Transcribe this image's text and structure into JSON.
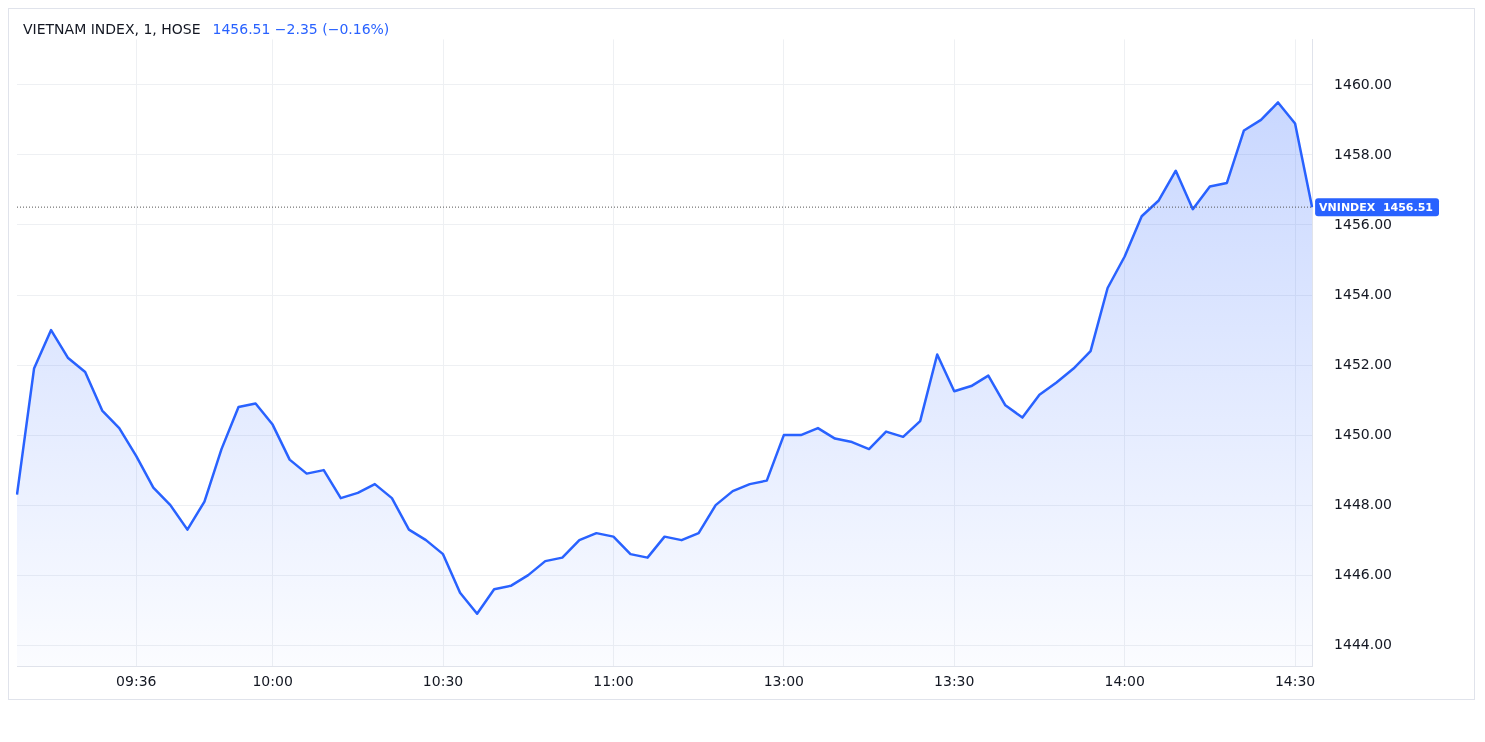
{
  "chart_data": {
    "type": "area",
    "title": "VIETNAM INDEX, 1, HOSE",
    "subtitle": "1456.51 −2.35 (−0.16%)",
    "categories": [
      null,
      null,
      null,
      null,
      null,
      null,
      null,
      "09:36",
      null,
      null,
      null,
      null,
      null,
      null,
      null,
      "10:00",
      null,
      null,
      null,
      null,
      null,
      null,
      null,
      null,
      null,
      "10:30",
      null,
      null,
      null,
      null,
      null,
      null,
      null,
      null,
      null,
      "11:00",
      null,
      null,
      null,
      null,
      null,
      null,
      null,
      null,
      null,
      "13:00",
      null,
      null,
      null,
      null,
      null,
      null,
      null,
      null,
      null,
      "13:30",
      null,
      null,
      null,
      null,
      null,
      null,
      null,
      null,
      null,
      "14:00",
      null,
      null,
      null,
      null,
      null,
      null,
      null,
      null,
      null,
      "14:30",
      null
    ],
    "series": [
      {
        "color": "#2962ff",
        "values": [
          1448.3,
          1451.9,
          1453.0,
          1452.2,
          1451.8,
          1450.7,
          1450.2,
          1449.4,
          1448.5,
          1448.0,
          1447.3,
          1448.1,
          1449.6,
          1450.8,
          1450.9,
          1450.3,
          1449.3,
          1448.9,
          1449.0,
          1448.2,
          1448.35,
          1448.6,
          1448.2,
          1447.3,
          1447.0,
          1446.6,
          1445.5,
          1444.9,
          1445.6,
          1445.7,
          1446.0,
          1446.4,
          1446.5,
          1447.0,
          1447.2,
          1447.1,
          1446.6,
          1446.5,
          1447.1,
          1447.0,
          1447.2,
          1448.0,
          1448.4,
          1448.6,
          1448.7,
          1450.0,
          1450.0,
          1450.2,
          1449.9,
          1449.8,
          1449.6,
          1450.1,
          1449.95,
          1450.4,
          1452.3,
          1451.25,
          1451.4,
          1451.7,
          1450.85,
          1450.5,
          1451.15,
          1451.5,
          1451.9,
          1452.4,
          1454.2,
          1455.1,
          1456.25,
          1456.7,
          1457.55,
          1456.45,
          1457.1,
          1457.2,
          1458.7,
          1459.0,
          1459.5,
          1458.9,
          1456.51
        ]
      }
    ],
    "ylim": [
      1443.4,
      1461.3
    ],
    "yticks": [
      {
        "value": 1444,
        "label": "1444.00"
      },
      {
        "value": 1446,
        "label": "1446.00"
      },
      {
        "value": 1448,
        "label": "1448.00"
      },
      {
        "value": 1450,
        "label": "1450.00"
      },
      {
        "value": 1452,
        "label": "1452.00"
      },
      {
        "value": 1454,
        "label": "1454.00"
      },
      {
        "value": 1456,
        "label": "1456.00"
      },
      {
        "value": 1458,
        "label": "1458.00"
      },
      {
        "value": 1460,
        "label": "1460.00"
      }
    ],
    "ref_lines": [
      {
        "axis": "y",
        "value": 1456.51,
        "label": "VNINDEX  1456.51",
        "color": "#555555",
        "line_style": "dotted"
      }
    ],
    "grid": true,
    "legend": false,
    "marker": "none",
    "line_style": "solid"
  }
}
